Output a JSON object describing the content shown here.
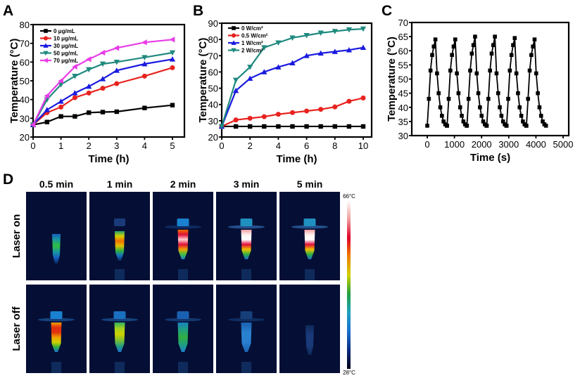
{
  "panel_labels": {
    "a": "A",
    "b": "B",
    "c": "C",
    "d": "D"
  },
  "chart_data": [
    {
      "id": "A",
      "type": "line",
      "xlabel": "Time (h)",
      "ylabel": "Temperature (°C)",
      "xlim": [
        0,
        5
      ],
      "ylim": [
        20,
        80
      ],
      "xticks": [
        0,
        1,
        2,
        3,
        4,
        5
      ],
      "yticks": [
        20,
        30,
        40,
        50,
        60,
        70,
        80
      ],
      "grid": false,
      "legend_position": "top-left",
      "series": [
        {
          "name": "0  μg/mL",
          "color": "#000000",
          "marker": "square",
          "x": [
            0,
            0.5,
            1,
            1.5,
            2,
            2.5,
            3,
            4,
            5
          ],
          "y": [
            26.5,
            28,
            31,
            31,
            33,
            33.3,
            33.5,
            35.5,
            37
          ]
        },
        {
          "name": "10 μg/mL",
          "color": "#e8231f",
          "marker": "circle",
          "x": [
            0,
            0.5,
            1,
            1.5,
            2,
            2.5,
            3,
            4,
            5
          ],
          "y": [
            26.5,
            33,
            36,
            41,
            43.5,
            46,
            48.5,
            52.5,
            57
          ]
        },
        {
          "name": "30 μg/mL",
          "color": "#1a1ae0",
          "marker": "triangle-up",
          "x": [
            0,
            0.5,
            1,
            1.5,
            2,
            2.5,
            3,
            4,
            5
          ],
          "y": [
            26.5,
            34.5,
            39,
            43.5,
            47,
            51,
            55.5,
            59,
            61.5
          ]
        },
        {
          "name": "50 μg/mL",
          "color": "#1f8a7f",
          "marker": "triangle-down",
          "x": [
            0,
            0.5,
            1,
            1.5,
            2,
            2.5,
            3,
            4,
            5
          ],
          "y": [
            26.5,
            40,
            48,
            52.5,
            56,
            59,
            60,
            62.5,
            65
          ]
        },
        {
          "name": "70 μg/mL",
          "color": "#e83ce8",
          "marker": "triangle-left",
          "x": [
            0,
            0.5,
            1,
            1.5,
            2,
            2.5,
            3,
            4,
            5
          ],
          "y": [
            26.5,
            42,
            50,
            57.5,
            61.5,
            65,
            67.5,
            70.5,
            72
          ]
        }
      ]
    },
    {
      "id": "B",
      "type": "line",
      "xlabel": "Time (h)",
      "ylabel": "Temperature (°C)",
      "xlim": [
        0,
        10
      ],
      "ylim": [
        20,
        90
      ],
      "xticks": [
        0,
        2,
        4,
        6,
        8,
        10
      ],
      "yticks": [
        20,
        30,
        40,
        50,
        60,
        70,
        80,
        90
      ],
      "grid": false,
      "legend_position": "top-left",
      "series": [
        {
          "name": "0 W/cm²",
          "color": "#000000",
          "marker": "square",
          "x": [
            0,
            1,
            2,
            3,
            4,
            5,
            6,
            7,
            8,
            9,
            10
          ],
          "y": [
            26.5,
            26.5,
            26.5,
            26.5,
            26.5,
            26.5,
            26.5,
            26.5,
            26.5,
            26.5,
            26.5
          ]
        },
        {
          "name": "0.5 W/cm²",
          "color": "#e8231f",
          "marker": "circle",
          "x": [
            0,
            1,
            2,
            3,
            4,
            5,
            6,
            7,
            8,
            9,
            10
          ],
          "y": [
            26.5,
            30.5,
            31.5,
            32.5,
            34,
            35,
            36,
            37,
            38.5,
            42,
            44
          ]
        },
        {
          "name": "1 W/cm²",
          "color": "#1a1ae0",
          "marker": "triangle-up",
          "x": [
            0,
            1,
            2,
            3,
            4,
            5,
            6,
            7,
            8,
            9,
            10
          ],
          "y": [
            26.5,
            48.5,
            56,
            60,
            63,
            65.5,
            70,
            71.5,
            72.5,
            73.5,
            75
          ]
        },
        {
          "name": "2 W/cm²",
          "color": "#1f8a7f",
          "marker": "triangle-down",
          "x": [
            0,
            1,
            2,
            3,
            4,
            5,
            6,
            7,
            8,
            9,
            10
          ],
          "y": [
            26.5,
            55,
            63,
            75,
            78,
            81,
            82.5,
            84,
            85,
            86,
            86.5
          ]
        }
      ]
    },
    {
      "id": "C",
      "type": "line",
      "xlabel": "Time (s)",
      "ylabel": "Temperature (°C)",
      "xlim": [
        -300,
        5000
      ],
      "ylim": [
        30,
        70
      ],
      "xticks": [
        0,
        1000,
        2000,
        3000,
        4000,
        5000
      ],
      "yticks": [
        30,
        35,
        40,
        45,
        50,
        55,
        60,
        65,
        70
      ],
      "grid": false,
      "series": [
        {
          "color": "#000000",
          "marker": "square",
          "x": [
            0,
            60,
            120,
            180,
            240,
            300,
            360,
            420,
            480,
            540,
            600,
            660,
            720,
            730,
            790,
            850,
            910,
            970,
            1030,
            1090,
            1150,
            1210,
            1270,
            1330,
            1390,
            1450,
            1460,
            1520,
            1580,
            1640,
            1700,
            1760,
            1820,
            1880,
            1940,
            2000,
            2060,
            2120,
            2180,
            2190,
            2250,
            2310,
            2370,
            2430,
            2490,
            2550,
            2610,
            2670,
            2730,
            2790,
            2850,
            2910,
            2920,
            2980,
            3040,
            3100,
            3160,
            3220,
            3280,
            3340,
            3400,
            3460,
            3520,
            3580,
            3640,
            3650,
            3710,
            3770,
            3830,
            3890,
            3950,
            4010,
            4070,
            4130,
            4190,
            4250,
            4310,
            4370
          ],
          "y": [
            33.5,
            43,
            53,
            58.5,
            61.5,
            64,
            52,
            45,
            40,
            37,
            35,
            34,
            33.5,
            33.5,
            43,
            53,
            58.5,
            61.5,
            64,
            52,
            45,
            40,
            37,
            35,
            34,
            33.5,
            33.5,
            43,
            53,
            59,
            62,
            65,
            52,
            45,
            40,
            37,
            35,
            34,
            33.5,
            33.5,
            43,
            53,
            59,
            62,
            65,
            52,
            45,
            40,
            37,
            35,
            34,
            33.5,
            33.5,
            43,
            53,
            58.5,
            62,
            64.5,
            52,
            45,
            40,
            37,
            35,
            34,
            33.5,
            33.5,
            43,
            53,
            58.5,
            61.5,
            64,
            52,
            45,
            40,
            37,
            35,
            34,
            33.5
          ]
        }
      ]
    }
  ],
  "thermal": {
    "columns": [
      "0.5 min",
      "1 min",
      "2 min",
      "3 min",
      "5 min"
    ],
    "rows": [
      "Laser on",
      "Laser off"
    ],
    "colorbar": {
      "max_label": "66°C",
      "min_label": "28°C",
      "colors": [
        "#000018",
        "#0a2a80",
        "#1a70d0",
        "#20a0c0",
        "#20a040",
        "#d0d000",
        "#f08000",
        "#e0002a",
        "#f0a0a0",
        "#ffffff"
      ]
    },
    "background_color": "#050f35"
  }
}
